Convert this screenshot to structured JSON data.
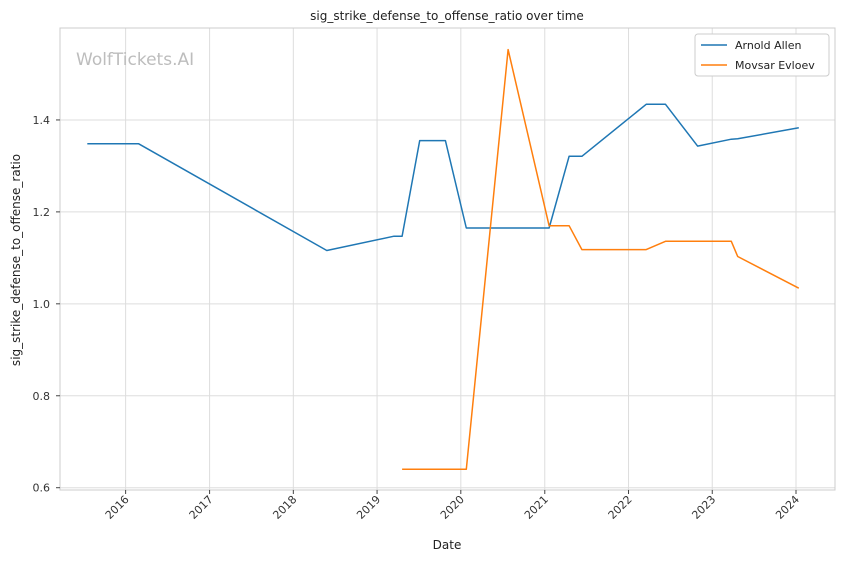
{
  "watermark": "WolfTickets.AI",
  "chart_data": {
    "type": "line",
    "title": "sig_strike_defense_to_offense_ratio over time",
    "xlabel": "Date",
    "ylabel": "sig_strike_defense_to_offense_ratio",
    "xlim": [
      "2015-03-21",
      "2024-06-19"
    ],
    "ylim": [
      0.595,
      1.6
    ],
    "x_ticks": [
      "2016",
      "2017",
      "2018",
      "2019",
      "2020",
      "2021",
      "2022",
      "2023",
      "2024"
    ],
    "y_ticks": [
      "0.6",
      "0.8",
      "1.0",
      "1.2",
      "1.4"
    ],
    "grid": true,
    "legend_position": "top-right",
    "series": [
      {
        "name": "Arnold Allen",
        "color": "#1f77b4",
        "points": [
          [
            "2015-07-18",
            1.348
          ],
          [
            "2016-02-27",
            1.348
          ],
          [
            "2018-05-27",
            1.116
          ],
          [
            "2019-03-16",
            1.147
          ],
          [
            "2019-04-20",
            1.147
          ],
          [
            "2019-07-06",
            1.355
          ],
          [
            "2019-10-26",
            1.355
          ],
          [
            "2020-01-25",
            1.165
          ],
          [
            "2021-01-20",
            1.165
          ],
          [
            "2021-04-17",
            1.321
          ],
          [
            "2021-06-12",
            1.321
          ],
          [
            "2022-03-19",
            1.434
          ],
          [
            "2022-06-11",
            1.434
          ],
          [
            "2022-10-29",
            1.343
          ],
          [
            "2023-03-25",
            1.358
          ],
          [
            "2023-04-22",
            1.359
          ],
          [
            "2024-01-13",
            1.383
          ]
        ]
      },
      {
        "name": "Movsar Evloev",
        "color": "#ff7f0e",
        "points": [
          [
            "2019-04-20",
            0.64
          ],
          [
            "2020-01-25",
            0.64
          ],
          [
            "2020-07-25",
            1.553
          ],
          [
            "2021-01-20",
            1.17
          ],
          [
            "2021-04-17",
            1.17
          ],
          [
            "2021-06-12",
            1.118
          ],
          [
            "2022-03-19",
            1.118
          ],
          [
            "2022-06-11",
            1.136
          ],
          [
            "2023-03-25",
            1.136
          ],
          [
            "2023-04-22",
            1.103
          ],
          [
            "2024-01-13",
            1.034
          ]
        ]
      }
    ]
  }
}
